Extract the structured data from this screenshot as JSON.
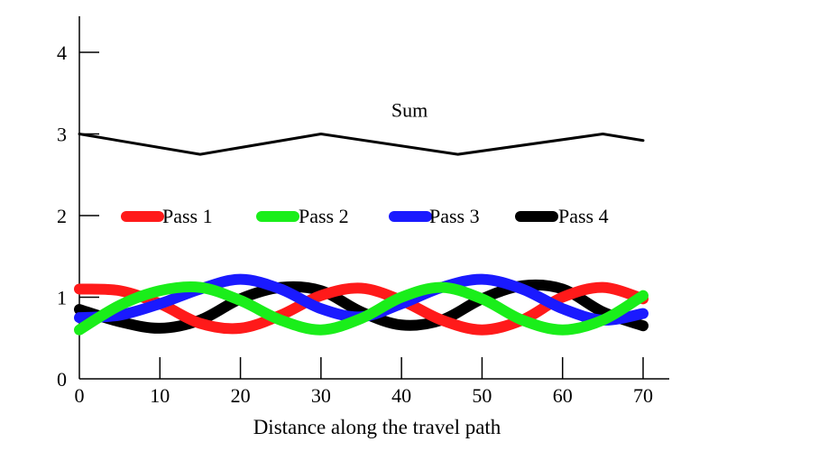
{
  "chart_data": {
    "type": "line",
    "title": "",
    "xlabel": "Distance along the travel path",
    "ylabel": "",
    "xlim": [
      0,
      70
    ],
    "ylim": [
      0,
      4
    ],
    "xticks": [
      "0",
      "10",
      "20",
      "30",
      "40",
      "50",
      "60",
      "70"
    ],
    "yticks": [
      "0",
      "1",
      "2",
      "3",
      "4"
    ],
    "grid": false,
    "legend_position": "middle",
    "annotations": [
      {
        "text": "Sum",
        "x": 41,
        "y": 3.3
      }
    ],
    "series": [
      {
        "name": "Pass 1",
        "color": "#ff1a1a",
        "x": [
          0,
          5,
          10,
          15,
          20,
          25,
          30,
          35,
          40,
          45,
          50,
          55,
          60,
          65,
          70
        ],
        "y": [
          1.1,
          1.08,
          0.92,
          0.68,
          0.62,
          0.78,
          1.02,
          1.11,
          0.96,
          0.72,
          0.6,
          0.72,
          1.0,
          1.12,
          0.98
        ]
      },
      {
        "name": "Pass 2",
        "color": "#1aee1a",
        "x": [
          0,
          5,
          10,
          15,
          20,
          25,
          30,
          35,
          40,
          45,
          50,
          55,
          60,
          65,
          70
        ],
        "y": [
          0.6,
          0.9,
          1.08,
          1.12,
          0.96,
          0.72,
          0.6,
          0.74,
          1.0,
          1.12,
          0.98,
          0.72,
          0.6,
          0.72,
          1.02
        ]
      },
      {
        "name": "Pass 3",
        "color": "#1a1aff",
        "x": [
          0,
          5,
          10,
          15,
          20,
          25,
          30,
          35,
          40,
          45,
          50,
          55,
          60,
          65,
          70
        ],
        "y": [
          0.75,
          0.78,
          0.92,
          1.1,
          1.22,
          1.1,
          0.86,
          0.76,
          0.92,
          1.12,
          1.22,
          1.1,
          0.86,
          0.72,
          0.8
        ]
      },
      {
        "name": "Pass 4",
        "color": "#000000",
        "x": [
          0,
          5,
          10,
          15,
          20,
          25,
          30,
          35,
          40,
          45,
          50,
          55,
          60,
          65,
          70
        ],
        "y": [
          0.85,
          0.7,
          0.62,
          0.72,
          0.98,
          1.12,
          1.08,
          0.82,
          0.66,
          0.72,
          0.98,
          1.14,
          1.1,
          0.82,
          0.65
        ]
      },
      {
        "name": "Sum",
        "color": "#000000",
        "x": [
          0,
          15,
          30,
          47,
          65,
          70
        ],
        "y": [
          3.0,
          2.75,
          3.0,
          2.75,
          3.0,
          2.92
        ]
      }
    ]
  }
}
